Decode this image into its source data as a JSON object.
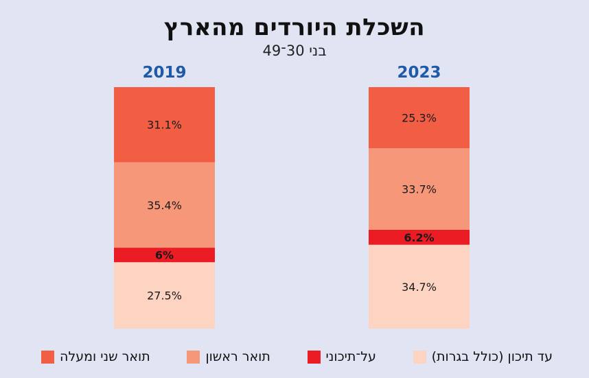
{
  "chart_data": {
    "type": "bar",
    "stacked": true,
    "normalized": true,
    "title": "השכלת היורדים מהארץ",
    "subtitle": "בני 30־49",
    "categories": [
      "2019",
      "2023"
    ],
    "series": [
      {
        "name": "עד תיכון (כולל בגרות)",
        "color": "#fdd3c2",
        "values": [
          27.5,
          34.7
        ],
        "labels": [
          "27.5%",
          "34.7%"
        ]
      },
      {
        "name": "על־תיכוני",
        "color": "#ec1c24",
        "values": [
          6,
          6.2
        ],
        "labels": [
          "6%",
          "6.2%"
        ]
      },
      {
        "name": "תואר ראשון",
        "color": "#f79779",
        "values": [
          35.4,
          33.7
        ],
        "labels": [
          "35.4%",
          "33.7%"
        ]
      },
      {
        "name": "תואר שני ומעלה",
        "color": "#f15e44",
        "values": [
          31.1,
          25.3
        ],
        "labels": [
          "31.1%",
          "25.3%"
        ]
      }
    ],
    "year_label_color": "#1f5aa8",
    "legend_position": "bottom",
    "grid": false
  }
}
